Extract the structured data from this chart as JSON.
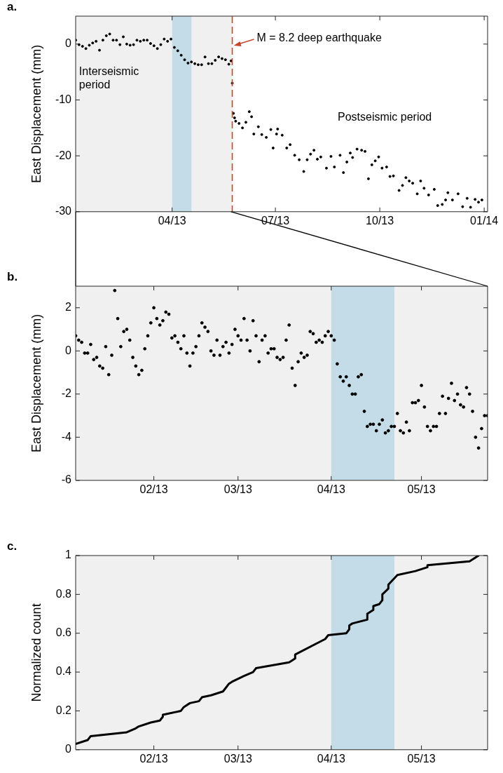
{
  "chart_data": [
    {
      "type": "scatter",
      "title": "a.",
      "ylabel": "East Displacement (mm)",
      "marker": "circle",
      "xlim": [
        "2013-01-06",
        "2014-01-04"
      ],
      "ylim": [
        -30,
        5
      ],
      "xticks": [
        {
          "value": "2013-04-01",
          "label": "04/13"
        },
        {
          "value": "2013-07-01",
          "label": "07/13"
        },
        {
          "value": "2013-10-01",
          "label": "10/13"
        },
        {
          "value": "2014-01-01",
          "label": "01/14"
        }
      ],
      "yticks": [
        -30,
        -20,
        -10,
        0
      ],
      "bands": [
        {
          "axis": "x",
          "from": "2013-01-06",
          "to": "2013-05-24",
          "color": "#f0f0f0"
        },
        {
          "axis": "x",
          "from": "2013-04-01",
          "to": "2013-04-18",
          "color": "#c3dce7"
        }
      ],
      "ref_lines": [
        {
          "axis": "x",
          "value": "2013-05-24",
          "label": "M = 8.2 deep earthquake",
          "color": "#c8442c",
          "line_style": "dashed"
        }
      ],
      "annotations": [
        {
          "text": "Interseismic period",
          "x": "2013-01-09",
          "y": -4
        },
        "Postseismic period"
      ],
      "x": [
        "2013-01-06",
        "2013-01-09",
        "2013-01-12",
        "2013-01-15",
        "2013-01-18",
        "2013-01-21",
        "2013-01-24",
        "2013-01-27",
        "2013-01-30",
        "2013-02-02",
        "2013-02-05",
        "2013-02-08",
        "2013-02-11",
        "2013-02-14",
        "2013-02-17",
        "2013-02-20",
        "2013-02-23",
        "2013-02-26",
        "2013-03-01",
        "2013-03-04",
        "2013-03-07",
        "2013-03-10",
        "2013-03-13",
        "2013-03-16",
        "2013-03-19",
        "2013-03-22",
        "2013-03-25",
        "2013-03-28",
        "2013-03-31",
        "2013-04-03",
        "2013-04-06",
        "2013-04-09",
        "2013-04-12",
        "2013-04-15",
        "2013-04-18",
        "2013-04-21",
        "2013-04-24",
        "2013-04-27",
        "2013-04-30",
        "2013-05-03",
        "2013-05-06",
        "2013-05-09",
        "2013-05-12",
        "2013-05-15",
        "2013-05-18",
        "2013-05-21",
        "2013-05-23",
        "2013-05-24",
        "2013-05-25",
        "2013-05-26",
        "2013-05-27",
        "2013-05-30",
        "2013-06-02",
        "2013-06-05",
        "2013-06-08",
        "2013-06-10",
        "2013-06-12",
        "2013-06-16",
        "2013-06-19",
        "2013-06-23",
        "2013-06-27",
        "2013-06-29",
        "2013-07-02",
        "2013-07-03",
        "2013-07-07",
        "2013-07-11",
        "2013-07-14",
        "2013-07-18",
        "2013-07-22",
        "2013-07-26",
        "2013-07-29",
        "2013-08-01",
        "2013-08-04",
        "2013-08-07",
        "2013-08-10",
        "2013-08-15",
        "2013-08-19",
        "2013-08-22",
        "2013-08-27",
        "2013-08-30",
        "2013-09-02",
        "2013-09-05",
        "2013-09-07",
        "2013-09-11",
        "2013-09-15",
        "2013-09-18",
        "2013-09-21",
        "2013-09-24",
        "2013-09-27",
        "2013-09-30",
        "2013-10-03",
        "2013-10-07",
        "2013-10-10",
        "2013-10-13",
        "2013-10-18",
        "2013-10-21",
        "2013-10-24",
        "2013-10-27",
        "2013-10-30",
        "2013-11-03",
        "2013-11-06",
        "2013-11-09",
        "2013-11-13",
        "2013-11-18",
        "2013-11-21",
        "2013-11-25",
        "2013-11-28",
        "2013-11-30",
        "2013-12-04",
        "2013-12-09",
        "2013-12-13",
        "2013-12-17",
        "2013-12-20",
        "2013-12-24",
        "2013-12-27",
        "2013-12-30"
      ],
      "series": [
        {
          "color": "#000000",
          "values": [
            0.7,
            -0.1,
            -0.4,
            -0.8,
            -0.2,
            0.2,
            0.5,
            -1.1,
            0.7,
            1.5,
            1.8,
            0.7,
            0.7,
            -0.1,
            1.3,
            0.0,
            -0.2,
            -0.1,
            0.7,
            0.5,
            0.7,
            0.7,
            0.1,
            -0.3,
            -0.8,
            -0.1,
            0.9,
            0.5,
            0.9,
            -0.6,
            -1.2,
            -2.0,
            -2.8,
            -3.4,
            -3.2,
            -3.5,
            -3.7,
            -3.7,
            -2.3,
            -3.5,
            -3.5,
            -2.9,
            -2.3,
            -2.6,
            -2.8,
            -3.6,
            -3.0,
            -7.0,
            -12.4,
            -13.2,
            -13.8,
            -14.2,
            -15.0,
            -14.0,
            -12.1,
            -13.0,
            -16.1,
            -14.8,
            -16.2,
            -16.7,
            -15.3,
            -18.6,
            -16.1,
            -15.2,
            -16.3,
            -18.6,
            -18.0,
            -19.9,
            -20.7,
            -22.8,
            -20.7,
            -19.7,
            -19.0,
            -20.6,
            -20.2,
            -22.2,
            -20.1,
            -22.0,
            -19.9,
            -23.0,
            -21.1,
            -19.5,
            -20.3,
            -18.8,
            -19.0,
            -19.2,
            -24.1,
            -21.6,
            -20.9,
            -20.2,
            -22.2,
            -22.0,
            -23.7,
            -23.6,
            -26.2,
            -25.3,
            -23.9,
            -24.5,
            -24.9,
            -26.8,
            -24.5,
            -25.8,
            -27.0,
            -26.0,
            -28.9,
            -28.7,
            -27.9,
            -26.6,
            -27.9,
            -26.8,
            -29.1,
            -27.6,
            -29.2,
            -27.8,
            -28.3,
            -27.9
          ]
        }
      ]
    },
    {
      "type": "scatter",
      "title": "b.",
      "ylabel": "East Displacement (mm)",
      "marker": "circle",
      "xlim": [
        "2013-01-06",
        "2013-05-23"
      ],
      "ylim": [
        -6,
        3
      ],
      "xticks": [
        {
          "value": "2013-02-01",
          "label": "02/13"
        },
        {
          "value": "2013-03-01",
          "label": "03/13"
        },
        {
          "value": "2013-04-01",
          "label": "04/13"
        },
        {
          "value": "2013-05-01",
          "label": "05/13"
        }
      ],
      "yticks": [
        -6,
        -4,
        -2,
        0,
        2
      ],
      "bands": [
        {
          "axis": "x",
          "from": "2013-01-06",
          "to": "2013-05-23",
          "color": "#f0f0f0"
        },
        {
          "axis": "x",
          "from": "2013-04-01",
          "to": "2013-04-22",
          "color": "#c3dce7"
        }
      ],
      "x": [
        "2013-01-06",
        "2013-01-07",
        "2013-01-08",
        "2013-01-09",
        "2013-01-10",
        "2013-01-11",
        "2013-01-12",
        "2013-01-13",
        "2013-01-14",
        "2013-01-15",
        "2013-01-16",
        "2013-01-17",
        "2013-01-18",
        "2013-01-19",
        "2013-01-20",
        "2013-01-21",
        "2013-01-22",
        "2013-01-23",
        "2013-01-24",
        "2013-01-25",
        "2013-01-26",
        "2013-01-27",
        "2013-01-28",
        "2013-01-29",
        "2013-01-30",
        "2013-01-31",
        "2013-02-01",
        "2013-02-02",
        "2013-02-03",
        "2013-02-04",
        "2013-02-05",
        "2013-02-06",
        "2013-02-07",
        "2013-02-08",
        "2013-02-09",
        "2013-02-10",
        "2013-02-11",
        "2013-02-12",
        "2013-02-13",
        "2013-02-14",
        "2013-02-15",
        "2013-02-16",
        "2013-02-17",
        "2013-02-18",
        "2013-02-19",
        "2013-02-20",
        "2013-02-21",
        "2013-02-22",
        "2013-02-23",
        "2013-02-24",
        "2013-02-25",
        "2013-02-26",
        "2013-02-27",
        "2013-02-28",
        "2013-03-01",
        "2013-03-02",
        "2013-03-03",
        "2013-03-04",
        "2013-03-05",
        "2013-03-06",
        "2013-03-07",
        "2013-03-08",
        "2013-03-09",
        "2013-03-10",
        "2013-03-11",
        "2013-03-12",
        "2013-03-13",
        "2013-03-14",
        "2013-03-15",
        "2013-03-16",
        "2013-03-17",
        "2013-03-18",
        "2013-03-19",
        "2013-03-20",
        "2013-03-21",
        "2013-03-22",
        "2013-03-23",
        "2013-03-24",
        "2013-03-25",
        "2013-03-26",
        "2013-03-27",
        "2013-03-28",
        "2013-03-29",
        "2013-03-30",
        "2013-03-31",
        "2013-04-01",
        "2013-04-02",
        "2013-04-03",
        "2013-04-04",
        "2013-04-05",
        "2013-04-06",
        "2013-04-07",
        "2013-04-08",
        "2013-04-09",
        "2013-04-10",
        "2013-04-11",
        "2013-04-12",
        "2013-04-13",
        "2013-04-14",
        "2013-04-15",
        "2013-04-16",
        "2013-04-17",
        "2013-04-18",
        "2013-04-19",
        "2013-04-20",
        "2013-04-21",
        "2013-04-22",
        "2013-04-23",
        "2013-04-24",
        "2013-04-25",
        "2013-04-26",
        "2013-04-27",
        "2013-04-28",
        "2013-04-29",
        "2013-04-30",
        "2013-05-01",
        "2013-05-02",
        "2013-05-03",
        "2013-05-04",
        "2013-05-05",
        "2013-05-06",
        "2013-05-07",
        "2013-05-08",
        "2013-05-09",
        "2013-05-10",
        "2013-05-11",
        "2013-05-12",
        "2013-05-13",
        "2013-05-14",
        "2013-05-15",
        "2013-05-16",
        "2013-05-17",
        "2013-05-18",
        "2013-05-19",
        "2013-05-20",
        "2013-05-21",
        "2013-05-22",
        "2013-05-23"
      ],
      "series": [
        {
          "color": "#000000",
          "values": [
            0.7,
            0.5,
            0.4,
            -0.1,
            -0.1,
            0.3,
            -0.4,
            -0.3,
            -0.7,
            -0.8,
            0.2,
            -1.1,
            -0.2,
            2.8,
            1.5,
            0.2,
            0.9,
            1.0,
            0.5,
            -0.3,
            -0.7,
            -1.1,
            -0.9,
            0.1,
            0.7,
            1.3,
            2.0,
            1.5,
            1.2,
            1.4,
            1.8,
            1.7,
            0.6,
            0.7,
            0.4,
            0.1,
            0.7,
            -0.1,
            -0.7,
            -0.1,
            0.2,
            0.7,
            1.3,
            1.1,
            0.9,
            0.0,
            -0.2,
            0.5,
            -0.2,
            0.2,
            0.4,
            -0.1,
            0.3,
            1.0,
            0.7,
            0.5,
            1.5,
            0.5,
            0.0,
            1.4,
            0.7,
            -0.5,
            0.5,
            0.7,
            -0.1,
            0.1,
            0.1,
            -0.3,
            -0.4,
            -0.3,
            0.5,
            1.2,
            -0.8,
            -1.6,
            -0.5,
            -0.1,
            -0.3,
            -0.2,
            0.9,
            0.8,
            0.4,
            0.5,
            0.4,
            0.7,
            0.9,
            0.7,
            0.5,
            -0.6,
            -1.2,
            -1.4,
            -1.2,
            -1.6,
            -2.0,
            -2.0,
            -1.2,
            -1.1,
            -2.8,
            -3.5,
            -3.4,
            -3.4,
            -3.7,
            -3.4,
            -3.2,
            -3.8,
            -3.7,
            -3.5,
            -3.5,
            -2.9,
            -3.7,
            -3.8,
            -3.3,
            -3.7,
            -2.4,
            -2.4,
            -2.3,
            -1.6,
            -2.6,
            -3.5,
            -3.7,
            -3.5,
            -3.5,
            -2.9,
            -2.1,
            -2.9,
            -2.2,
            -1.5,
            -2.3,
            -2.0,
            -2.5,
            -2.6,
            -1.7,
            -2.0,
            -2.8,
            -4.0,
            -4.5,
            -3.6,
            -3.0,
            -3.0
          ]
        }
      ]
    },
    {
      "type": "line",
      "title": "c.",
      "ylabel": "Normalized count",
      "marker": "none",
      "line_style": "solid",
      "xlim": [
        "2013-01-06",
        "2013-05-23"
      ],
      "ylim": [
        0,
        1
      ],
      "xticks": [
        {
          "value": "2013-02-01",
          "label": "02/13"
        },
        {
          "value": "2013-03-01",
          "label": "03/13"
        },
        {
          "value": "2013-04-01",
          "label": "04/13"
        },
        {
          "value": "2013-05-01",
          "label": "05/13"
        }
      ],
      "yticks": [
        0,
        0.2,
        0.4,
        0.6,
        0.8,
        1
      ],
      "bands": [
        {
          "axis": "x",
          "from": "2013-01-06",
          "to": "2013-05-23",
          "color": "#f0f0f0"
        },
        {
          "axis": "x",
          "from": "2013-04-01",
          "to": "2013-04-22",
          "color": "#c3dce7"
        }
      ],
      "x": [
        "2013-01-06",
        "2013-01-10",
        "2013-01-11",
        "2013-01-23",
        "2013-01-26",
        "2013-01-27",
        "2013-01-31",
        "2013-02-03",
        "2013-02-04",
        "2013-02-04",
        "2013-02-10",
        "2013-02-11",
        "2013-02-13",
        "2013-02-16",
        "2013-02-17",
        "2013-02-20",
        "2013-02-24",
        "2013-02-25",
        "2013-02-26",
        "2013-02-27",
        "2013-03-03",
        "2013-03-06",
        "2013-03-07",
        "2013-03-18",
        "2013-03-20",
        "2013-03-20",
        "2013-03-30",
        "2013-03-31",
        "2013-04-06",
        "2013-04-07",
        "2013-04-07",
        "2013-04-08",
        "2013-04-13",
        "2013-04-13",
        "2013-04-15",
        "2013-04-15",
        "2013-04-17",
        "2013-04-18",
        "2013-04-18",
        "2013-04-20",
        "2013-04-20",
        "2013-04-23",
        "2013-04-29",
        "2013-05-03",
        "2013-05-03",
        "2013-05-17",
        "2013-05-20"
      ],
      "series": [
        {
          "color": "#000000",
          "values": [
            0.03,
            0.05,
            0.07,
            0.09,
            0.11,
            0.12,
            0.14,
            0.15,
            0.17,
            0.18,
            0.2,
            0.22,
            0.24,
            0.25,
            0.27,
            0.28,
            0.3,
            0.32,
            0.34,
            0.35,
            0.38,
            0.4,
            0.42,
            0.45,
            0.47,
            0.49,
            0.57,
            0.59,
            0.6,
            0.62,
            0.64,
            0.65,
            0.67,
            0.7,
            0.72,
            0.74,
            0.75,
            0.77,
            0.8,
            0.83,
            0.85,
            0.9,
            0.92,
            0.94,
            0.95,
            0.97,
            1.0
          ]
        }
      ]
    }
  ]
}
